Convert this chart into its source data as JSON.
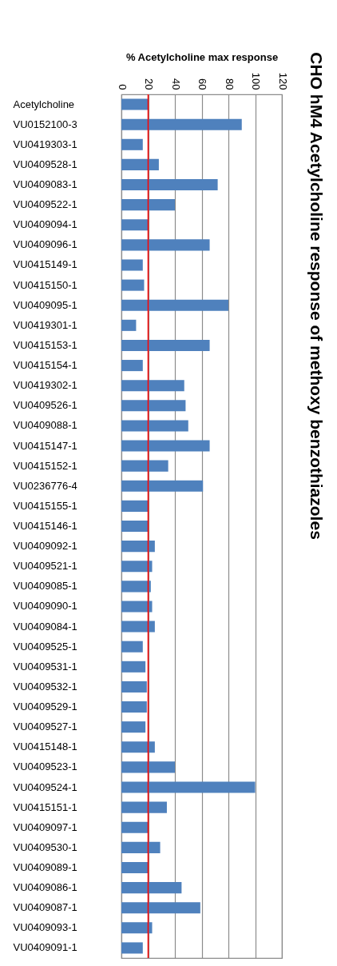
{
  "chart_data": {
    "type": "bar",
    "orientation": "horizontal",
    "title": "CHO hM4 Acetylcholine response of methoxy benzothiazoles",
    "xlabel": "% Acetylcholine  max response",
    "categories": [
      "Acetylcholine",
      "VU0152100-3",
      "VU0419303-1",
      "VU0409528-1",
      "VU0409083-1",
      "VU0409522-1",
      "VU0409094-1",
      "VU0409096-1",
      "VU0415149-1",
      "VU0415150-1",
      "VU0409095-1",
      "VU0419301-1",
      "VU0415153-1",
      "VU0415154-1",
      "VU0419302-1",
      "VU0409526-1",
      "VU0409088-1",
      "VU0415147-1",
      "VU0415152-1",
      "VU0236776-4",
      "VU0415155-1",
      "VU0415146-1",
      "VU0409092-1",
      "VU0409521-1",
      "VU0409085-1",
      "VU0409090-1",
      "VU0409084-1",
      "VU0409525-1",
      "VU0409531-1",
      "VU0409532-1",
      "VU0409529-1",
      "VU0409527-1",
      "VU0415148-1",
      "VU0409523-1",
      "VU0409524-1",
      "VU0415151-1",
      "VU0409097-1",
      "VU0409530-1",
      "VU0409089-1",
      "VU0409086-1",
      "VU0409087-1",
      "VU0409093-1",
      "VU0409091-1"
    ],
    "values": [
      20,
      90,
      16,
      28,
      72,
      40,
      20,
      66,
      16,
      17,
      80,
      11,
      66,
      16,
      47,
      48,
      50,
      66,
      35,
      61,
      20,
      20,
      25,
      23,
      22,
      23,
      25,
      16,
      18,
      19,
      19,
      18,
      25,
      40,
      100,
      34,
      20,
      29,
      20,
      45,
      59,
      23,
      16
    ],
    "color": "#4f81bd",
    "xlim": [
      0,
      120
    ],
    "xticks": [
      0,
      20,
      40,
      60,
      80,
      100,
      120
    ],
    "grid": "x",
    "ref_lines": [
      {
        "axis": "x",
        "value": 20,
        "color": "#ff0000"
      }
    ]
  }
}
